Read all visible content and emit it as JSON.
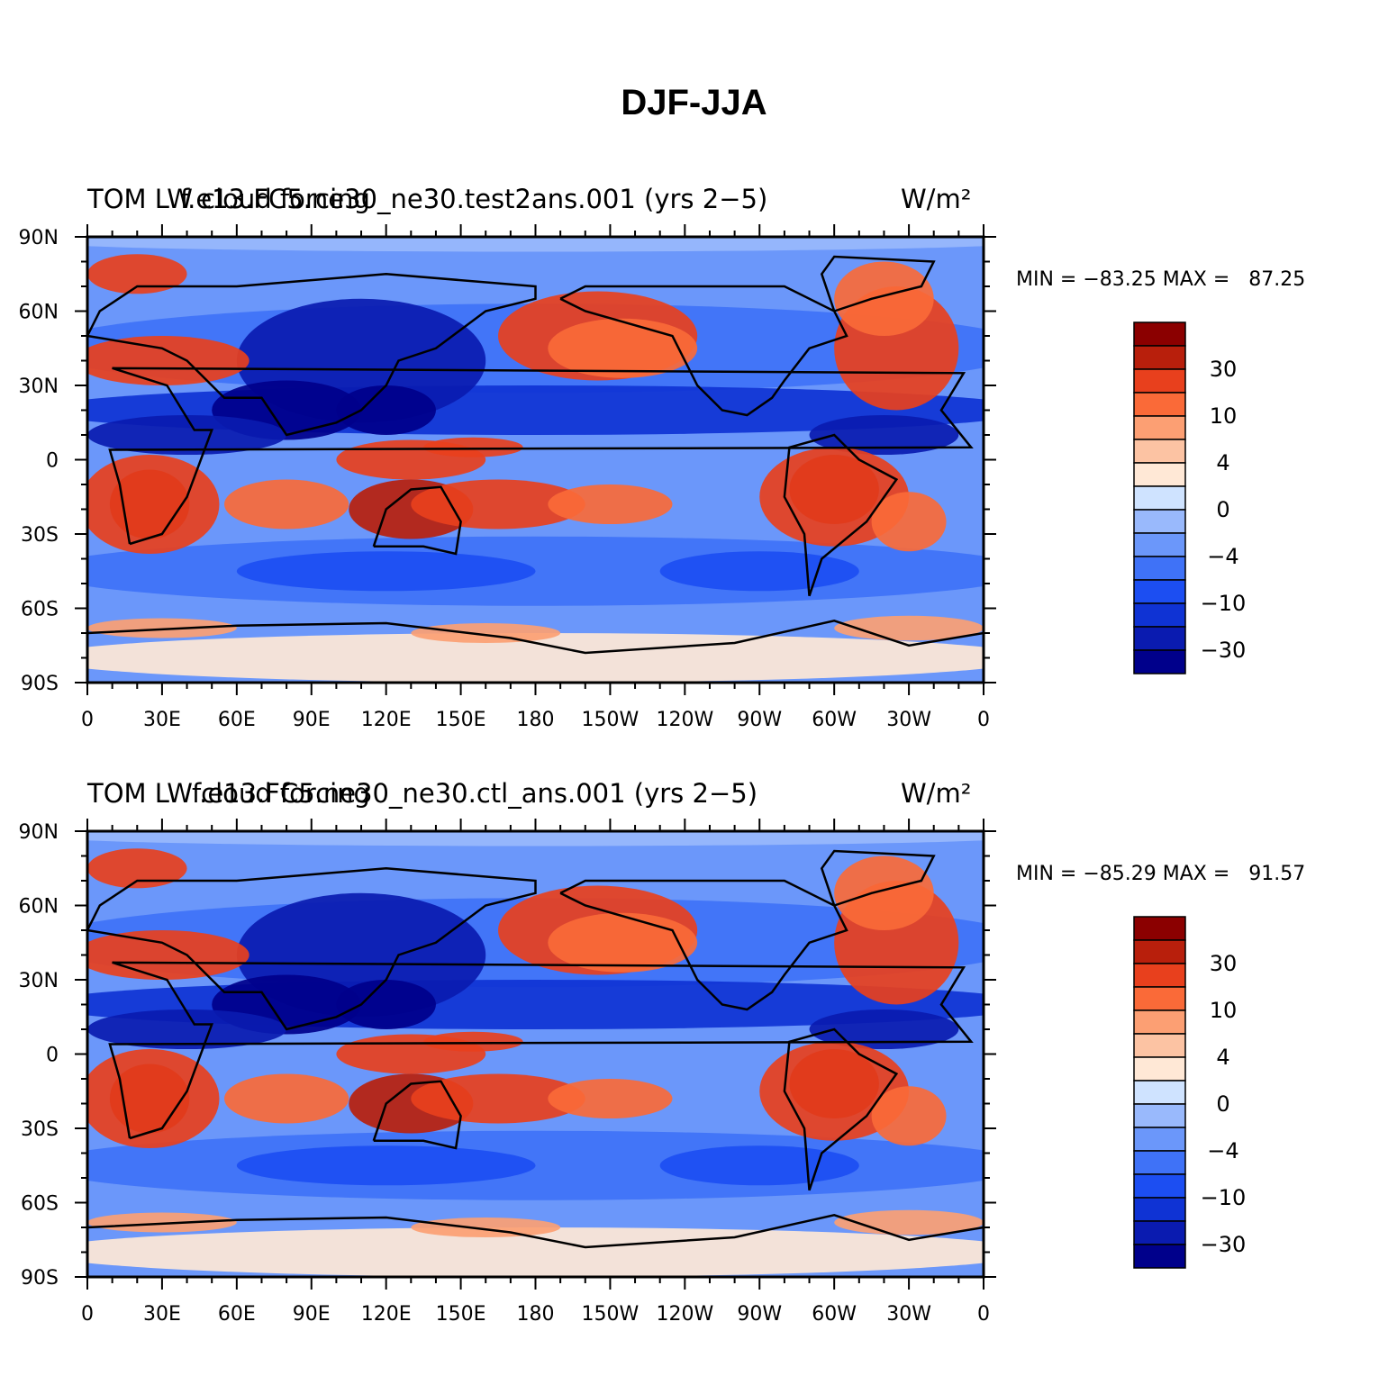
{
  "figure": {
    "title": "DJF-JJA"
  },
  "colors": {
    "levels": [
      "#00008b",
      "#0a1bb0",
      "#0f33d4",
      "#1c4ef2",
      "#3f72f7",
      "#6b97fa",
      "#99b9fc",
      "#cfe3ff",
      "#ffe8d6",
      "#fcc3a3",
      "#fc9f73",
      "#fa6a38",
      "#e8401d",
      "#b81f0c",
      "#8b0000"
    ],
    "colorbar_labels": [
      "30",
      "10",
      "4",
      "0",
      "−4",
      "−10",
      "−30"
    ]
  },
  "panels": [
    {
      "left_title": "TOM LW cloud forcing",
      "case_title": "f.e13.FC5.ne30_ne30.test2ans.001 (yrs 2−5)",
      "units": "W/m²",
      "min_max": "MIN = −83.25 MAX =   87.25"
    },
    {
      "left_title": "TOM LW cloud forcing",
      "case_title": "f.e13.FC5.ne30_ne30.ctl_ans.001 (yrs 2−5)",
      "units": "W/m²",
      "min_max": "MIN = −85.29 MAX =   91.57"
    }
  ],
  "axes": {
    "lat_labels": [
      "90N",
      "60N",
      "30N",
      "0",
      "30S",
      "60S",
      "90S"
    ],
    "lon_labels": [
      "0",
      "30E",
      "60E",
      "90E",
      "120E",
      "150E",
      "180",
      "150W",
      "120W",
      "90W",
      "60W",
      "30W",
      "0"
    ]
  }
}
